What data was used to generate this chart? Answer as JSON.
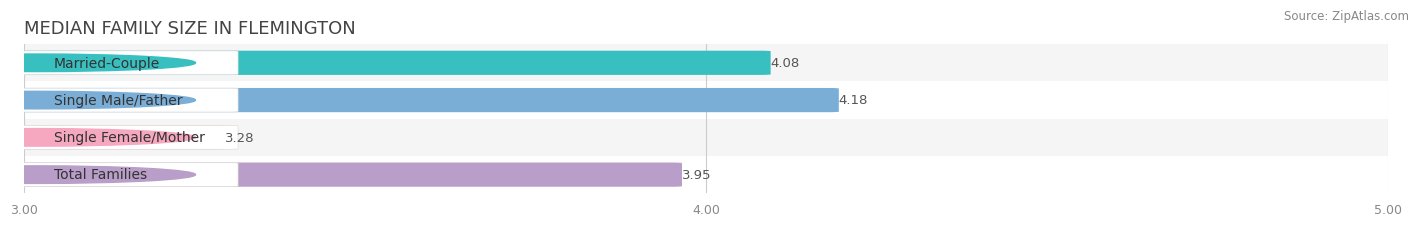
{
  "title": "MEDIAN FAMILY SIZE IN FLEMINGTON",
  "source": "Source: ZipAtlas.com",
  "categories": [
    "Married-Couple",
    "Single Male/Father",
    "Single Female/Mother",
    "Total Families"
  ],
  "values": [
    4.08,
    4.18,
    3.28,
    3.95
  ],
  "bar_colors": [
    "#38bfbf",
    "#7aaed6",
    "#f5a8c0",
    "#b89ec8"
  ],
  "accent_colors": [
    "#38bfbf",
    "#7aaed6",
    "#f5a8c0",
    "#b89ec8"
  ],
  "xmin": 3.0,
  "xmax": 5.0,
  "xticks": [
    3.0,
    4.0,
    5.0
  ],
  "xtick_labels": [
    "3.00",
    "4.00",
    "5.00"
  ],
  "background_color": "#ffffff",
  "row_bg_colors": [
    "#f5f5f5",
    "#ffffff",
    "#f5f5f5",
    "#ffffff"
  ],
  "label_fontsize": 10,
  "value_fontsize": 9.5,
  "title_fontsize": 13,
  "source_fontsize": 8.5
}
